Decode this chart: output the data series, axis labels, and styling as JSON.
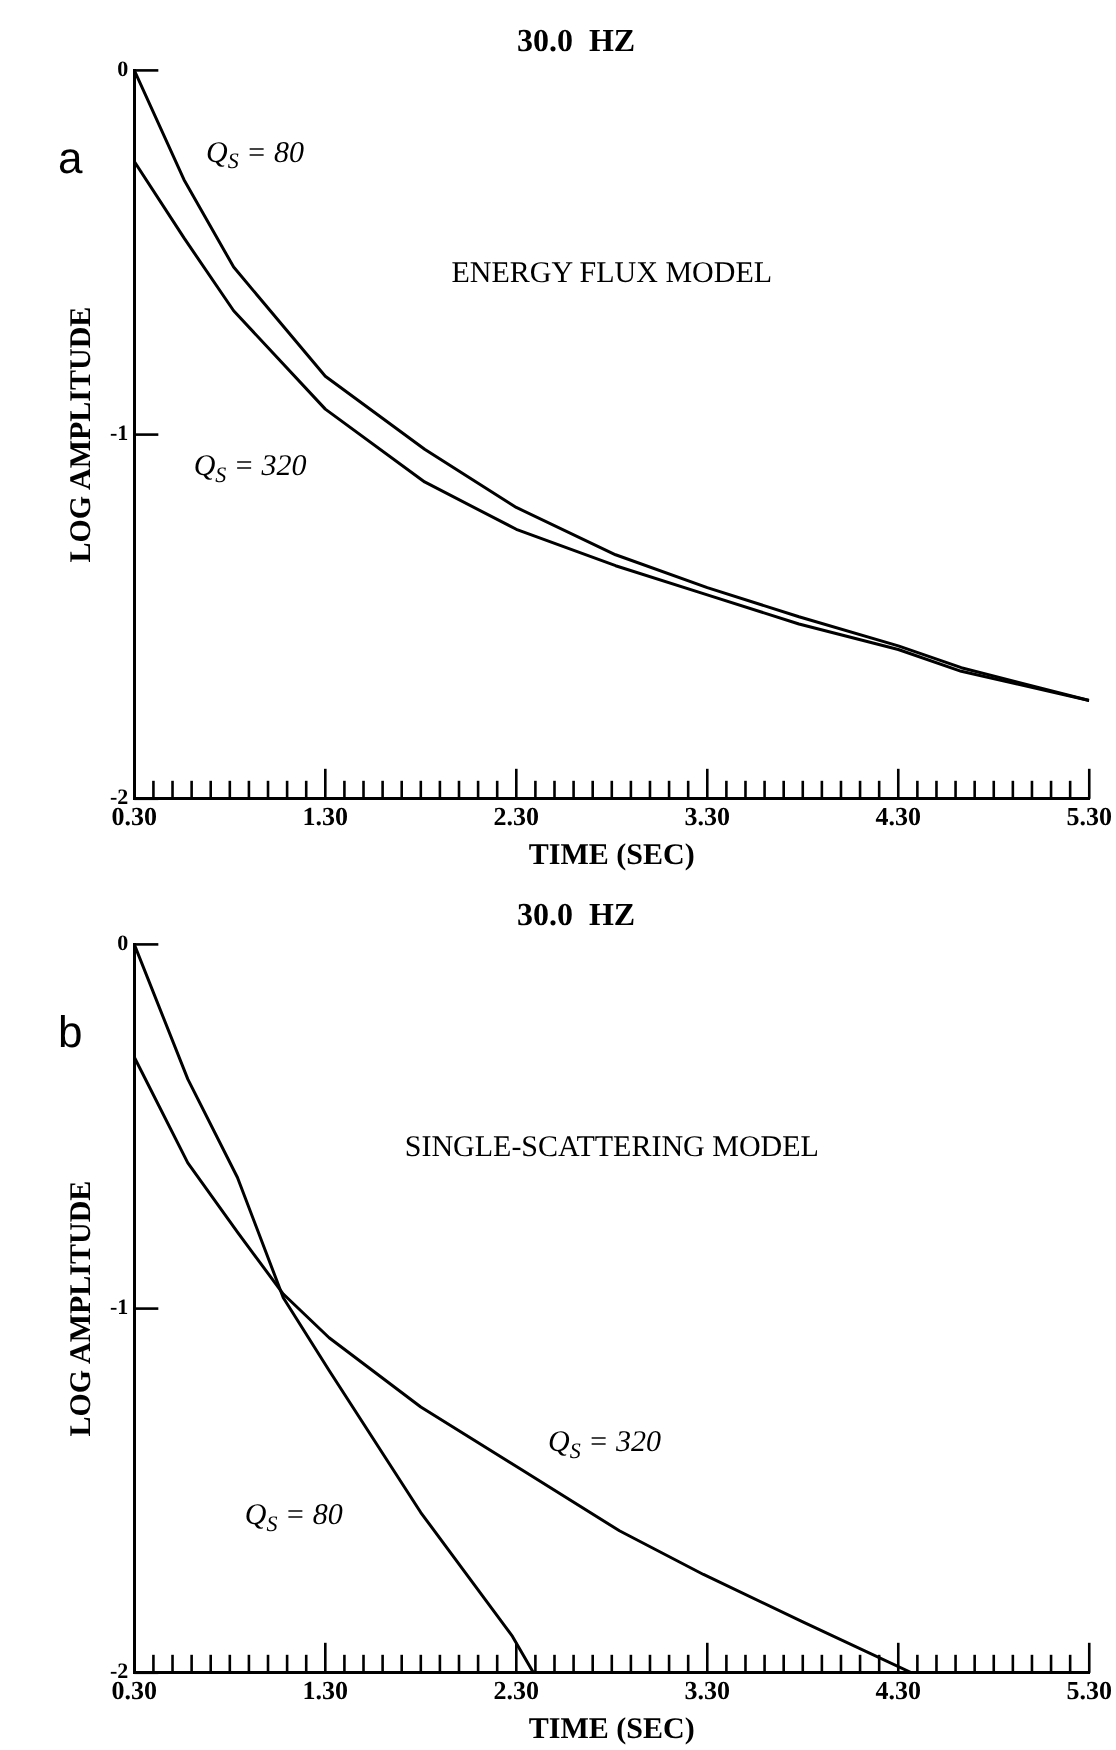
{
  "chart_data": [
    {
      "type": "line",
      "title": "30.0  HZ",
      "xlabel": "TIME (SEC)",
      "ylabel": "LOG AMPLITUDE",
      "annotations": [
        "a",
        "ENERGY FLUX MODEL"
      ],
      "series": [
        {
          "name": "Q$_{S}$ = 80",
          "color": "#000000",
          "x": [
            0.3,
            0.56,
            0.82,
            1.3,
            1.82,
            2.3,
            2.82,
            3.3,
            3.78,
            4.3,
            4.63,
            5.3
          ],
          "values": [
            0,
            -0.3,
            -0.54,
            -0.84,
            -1.04,
            -1.2,
            -1.33,
            -1.42,
            -1.5,
            -1.58,
            -1.64,
            -1.73
          ]
        },
        {
          "name": "Q$_{S}$ = 320",
          "color": "#000000",
          "x": [
            0.3,
            0.56,
            0.82,
            1.3,
            1.82,
            2.3,
            2.82,
            3.3,
            3.78,
            4.3,
            4.63,
            5.3
          ],
          "values": [
            -0.25,
            -0.46,
            -0.66,
            -0.93,
            -1.13,
            -1.26,
            -1.36,
            -1.44,
            -1.52,
            -1.59,
            -1.65,
            -1.73
          ]
        }
      ],
      "xlim": [
        0.3,
        5.3
      ],
      "ylim": [
        -2,
        0
      ],
      "xticks": [
        {
          "value": 0.3,
          "label": "0.30"
        },
        {
          "value": 0.4,
          "label": null
        },
        {
          "value": 0.5,
          "label": null
        },
        {
          "value": 0.6,
          "label": null
        },
        {
          "value": 0.7,
          "label": null
        },
        {
          "value": 0.8,
          "label": null
        },
        {
          "value": 0.9,
          "label": null
        },
        {
          "value": 1.0,
          "label": null
        },
        {
          "value": 1.1,
          "label": null
        },
        {
          "value": 1.2,
          "label": null
        },
        {
          "value": 1.3,
          "label": "1.30"
        },
        {
          "value": 1.4,
          "label": null
        },
        {
          "value": 1.5,
          "label": null
        },
        {
          "value": 1.6,
          "label": null
        },
        {
          "value": 1.7,
          "label": null
        },
        {
          "value": 1.8,
          "label": null
        },
        {
          "value": 1.9,
          "label": null
        },
        {
          "value": 2.0,
          "label": null
        },
        {
          "value": 2.1,
          "label": null
        },
        {
          "value": 2.2,
          "label": null
        },
        {
          "value": 2.3,
          "label": "2.30"
        },
        {
          "value": 2.4,
          "label": null
        },
        {
          "value": 2.5,
          "label": null
        },
        {
          "value": 2.6,
          "label": null
        },
        {
          "value": 2.7,
          "label": null
        },
        {
          "value": 2.8,
          "label": null
        },
        {
          "value": 2.9,
          "label": null
        },
        {
          "value": 3.0,
          "label": null
        },
        {
          "value": 3.1,
          "label": null
        },
        {
          "value": 3.2,
          "label": null
        },
        {
          "value": 3.3,
          "label": "3.30"
        },
        {
          "value": 3.4,
          "label": null
        },
        {
          "value": 3.5,
          "label": null
        },
        {
          "value": 3.6,
          "label": null
        },
        {
          "value": 3.7,
          "label": null
        },
        {
          "value": 3.8,
          "label": null
        },
        {
          "value": 3.9,
          "label": null
        },
        {
          "value": 4.0,
          "label": null
        },
        {
          "value": 4.1,
          "label": null
        },
        {
          "value": 4.2,
          "label": null
        },
        {
          "value": 4.3,
          "label": "4.30"
        },
        {
          "value": 4.4,
          "label": null
        },
        {
          "value": 4.5,
          "label": null
        },
        {
          "value": 4.6,
          "label": null
        },
        {
          "value": 4.7,
          "label": null
        },
        {
          "value": 4.8,
          "label": null
        },
        {
          "value": 4.9,
          "label": null
        },
        {
          "value": 5.0,
          "label": null
        },
        {
          "value": 5.1,
          "label": null
        },
        {
          "value": 5.2,
          "label": null
        },
        {
          "value": 5.3,
          "label": "5.30"
        }
      ],
      "yticks": [
        -2,
        -1,
        0
      ],
      "grid": false,
      "legend": false,
      "marker": "none",
      "line_style": "solid"
    },
    {
      "type": "line",
      "title": "30.0  HZ",
      "xlabel": "TIME (SEC)",
      "ylabel": "LOG AMPLITUDE",
      "annotations": [
        "b",
        "SINGLE-SCATTERING MODEL"
      ],
      "series": [
        {
          "name": "Q$_{S}$ = 80",
          "color": "#000000",
          "x": [
            0.3,
            0.58,
            0.84,
            1.08,
            1.32,
            1.8,
            2.28,
            2.39
          ],
          "values": [
            0,
            -0.37,
            -0.64,
            -0.97,
            -1.17,
            -1.56,
            -1.9,
            -2
          ]
        },
        {
          "name": "Q$_{S}$ = 320",
          "color": "#000000",
          "x": [
            0.3,
            0.58,
            0.84,
            1.08,
            1.32,
            1.8,
            2.32,
            2.84,
            3.28,
            3.8,
            4.37
          ],
          "values": [
            -0.31,
            -0.6,
            -0.79,
            -0.96,
            -1.08,
            -1.27,
            -1.44,
            -1.61,
            -1.73,
            -1.86,
            -2
          ]
        }
      ],
      "xlim": [
        0.3,
        5.3
      ],
      "ylim": [
        -2,
        0
      ],
      "xticks": [
        {
          "value": 0.3,
          "label": "0.30"
        },
        {
          "value": 0.4,
          "label": null
        },
        {
          "value": 0.5,
          "label": null
        },
        {
          "value": 0.6,
          "label": null
        },
        {
          "value": 0.7,
          "label": null
        },
        {
          "value": 0.8,
          "label": null
        },
        {
          "value": 0.9,
          "label": null
        },
        {
          "value": 1.0,
          "label": null
        },
        {
          "value": 1.1,
          "label": null
        },
        {
          "value": 1.2,
          "label": null
        },
        {
          "value": 1.3,
          "label": "1.30"
        },
        {
          "value": 1.4,
          "label": null
        },
        {
          "value": 1.5,
          "label": null
        },
        {
          "value": 1.6,
          "label": null
        },
        {
          "value": 1.7,
          "label": null
        },
        {
          "value": 1.8,
          "label": null
        },
        {
          "value": 1.9,
          "label": null
        },
        {
          "value": 2.0,
          "label": null
        },
        {
          "value": 2.1,
          "label": null
        },
        {
          "value": 2.2,
          "label": null
        },
        {
          "value": 2.3,
          "label": "2.30"
        },
        {
          "value": 2.4,
          "label": null
        },
        {
          "value": 2.5,
          "label": null
        },
        {
          "value": 2.6,
          "label": null
        },
        {
          "value": 2.7,
          "label": null
        },
        {
          "value": 2.8,
          "label": null
        },
        {
          "value": 2.9,
          "label": null
        },
        {
          "value": 3.0,
          "label": null
        },
        {
          "value": 3.1,
          "label": null
        },
        {
          "value": 3.2,
          "label": null
        },
        {
          "value": 3.3,
          "label": "3.30"
        },
        {
          "value": 3.4,
          "label": null
        },
        {
          "value": 3.5,
          "label": null
        },
        {
          "value": 3.6,
          "label": null
        },
        {
          "value": 3.7,
          "label": null
        },
        {
          "value": 3.8,
          "label": null
        },
        {
          "value": 3.9,
          "label": null
        },
        {
          "value": 4.0,
          "label": null
        },
        {
          "value": 4.1,
          "label": null
        },
        {
          "value": 4.2,
          "label": null
        },
        {
          "value": 4.3,
          "label": "4.30"
        },
        {
          "value": 4.4,
          "label": null
        },
        {
          "value": 4.5,
          "label": null
        },
        {
          "value": 4.6,
          "label": null
        },
        {
          "value": 4.7,
          "label": null
        },
        {
          "value": 4.8,
          "label": null
        },
        {
          "value": 4.9,
          "label": null
        },
        {
          "value": 5.0,
          "label": null
        },
        {
          "value": 5.1,
          "label": null
        },
        {
          "value": 5.2,
          "label": null
        },
        {
          "value": 5.3,
          "label": "5.30"
        }
      ],
      "yticks": [
        -2,
        -1,
        0
      ],
      "grid": false,
      "legend": false,
      "marker": "none",
      "line_style": "solid"
    }
  ]
}
